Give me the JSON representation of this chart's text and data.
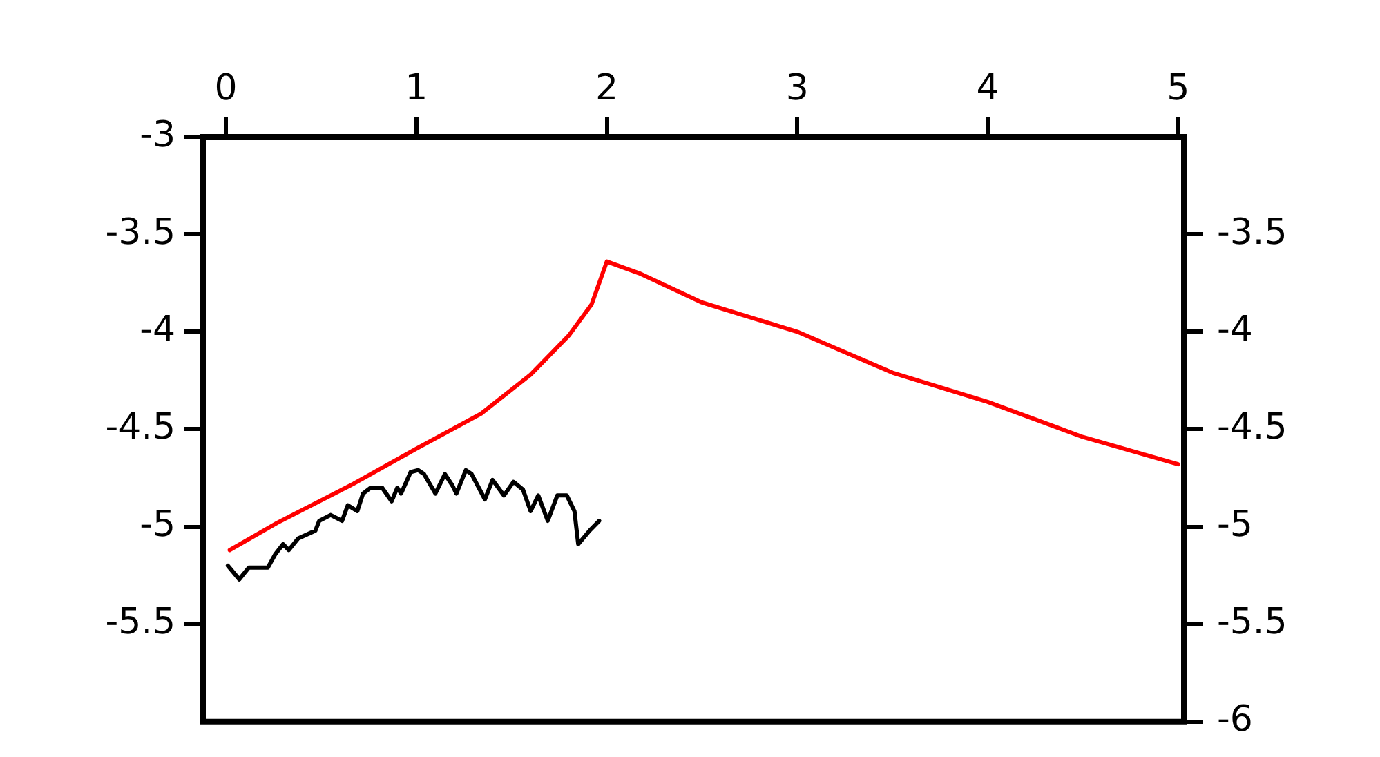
{
  "chart_data": {
    "type": "line",
    "xlim": [
      -0.12,
      5.03
    ],
    "xticks": [
      0,
      1,
      2,
      3,
      4,
      5
    ],
    "ylim": [
      -6,
      -3
    ],
    "yticks": [
      -3,
      -3.5,
      -4,
      -4.5,
      -5,
      -5.5
    ],
    "y2lim": [
      -6,
      -3
    ],
    "y2ticks": [
      -3.5,
      -4,
      -4.5,
      -5,
      -5.5,
      -6
    ],
    "grid": false,
    "legend": false,
    "marker": "none",
    "line_style": "solid",
    "series": [
      {
        "color": "#ff0000",
        "x": [
          0.02,
          0.27,
          0.67,
          1.0,
          1.34,
          1.6,
          1.8,
          1.92,
          2.0,
          2.17,
          2.5,
          3.0,
          3.5,
          4.0,
          4.5,
          5.0
        ],
        "values": [
          -5.12,
          -4.98,
          -4.78,
          -4.6,
          -4.42,
          -4.22,
          -4.02,
          -3.86,
          -3.64,
          -3.7,
          -3.85,
          -4.0,
          -4.21,
          -4.36,
          -4.54,
          -4.68
        ]
      },
      {
        "color": "#000000",
        "x": [
          0.01,
          0.07,
          0.12,
          0.22,
          0.26,
          0.3,
          0.33,
          0.38,
          0.47,
          0.49,
          0.55,
          0.61,
          0.64,
          0.69,
          0.72,
          0.76,
          0.82,
          0.87,
          0.9,
          0.92,
          0.97,
          1.01,
          1.04,
          1.1,
          1.15,
          1.19,
          1.21,
          1.26,
          1.29,
          1.36,
          1.4,
          1.46,
          1.51,
          1.56,
          1.6,
          1.64,
          1.69,
          1.74,
          1.79,
          1.83,
          1.85,
          1.91,
          1.96
        ],
        "values": [
          -5.2,
          -5.27,
          -5.21,
          -5.21,
          -5.14,
          -5.09,
          -5.12,
          -5.06,
          -5.02,
          -4.97,
          -4.94,
          -4.97,
          -4.89,
          -4.92,
          -4.83,
          -4.8,
          -4.8,
          -4.87,
          -4.8,
          -4.83,
          -4.72,
          -4.71,
          -4.73,
          -4.83,
          -4.73,
          -4.79,
          -4.83,
          -4.71,
          -4.73,
          -4.86,
          -4.76,
          -4.84,
          -4.77,
          -4.81,
          -4.92,
          -4.84,
          -4.97,
          -4.84,
          -4.84,
          -4.92,
          -5.09,
          -5.02,
          -4.97
        ]
      }
    ]
  }
}
